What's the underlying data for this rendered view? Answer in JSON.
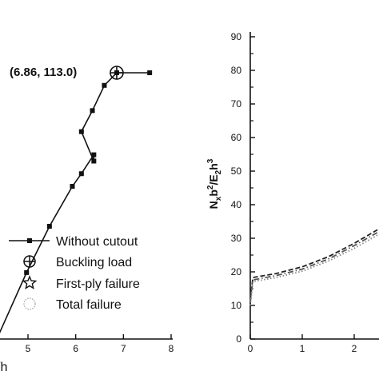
{
  "chart_data": [
    {
      "type": "line",
      "panel": "left",
      "xlabel": "/h",
      "x_ticks": [
        "5",
        "6",
        "7",
        "8"
      ],
      "series": [
        {
          "name": "Without cutout",
          "x": [
            4.2,
            4.97,
            5.45,
            5.93,
            6.12,
            6.38,
            6.38,
            6.12,
            6.35,
            6.6,
            6.86,
            7.55
          ],
          "y": [
            46,
            65.5,
            76.5,
            86,
            89,
            93.5,
            92,
            99,
            104,
            110,
            113.0,
            113.0
          ]
        }
      ],
      "annotation": {
        "label": "(6.86, 113.0)",
        "x": 6.86,
        "y": 113.0
      },
      "legend": {
        "placement": "bottom-right",
        "items": [
          {
            "label": "Without cutout",
            "marker": "line-square"
          },
          {
            "label": "Buckling load",
            "marker": "circle-cross"
          },
          {
            "label": "First-ply failure",
            "marker": "star"
          },
          {
            "label": "Total failure",
            "marker": "circle-dotted"
          }
        ]
      }
    },
    {
      "type": "line",
      "panel": "right",
      "ylabel": "N_x b^2/E_2 h^3",
      "ylim": [
        0,
        90
      ],
      "y_ticks": [
        "0",
        "10",
        "20",
        "30",
        "40",
        "50",
        "60",
        "70",
        "80",
        "90"
      ],
      "x_ticks": [
        "0",
        "1",
        "2"
      ],
      "series": [
        {
          "style": "dash",
          "x": [
            0,
            0.05,
            0.5,
            1.0,
            1.5,
            2.0,
            2.5,
            2.95
          ],
          "y": [
            12,
            18.3,
            19.5,
            21.5,
            24.5,
            28.5,
            33,
            37.5
          ]
        },
        {
          "style": "dash-dot",
          "x": [
            0,
            0.05,
            0.5,
            1.0,
            1.5,
            2.0,
            2.5,
            2.95
          ],
          "y": [
            11,
            17.6,
            18.9,
            20.8,
            23.8,
            27.8,
            32.2,
            36.6
          ]
        },
        {
          "style": "dot",
          "x": [
            0,
            0.05,
            0.5,
            1.0,
            1.5,
            2.0,
            2.5,
            2.95
          ],
          "y": [
            10,
            17.1,
            18.3,
            20.2,
            23.2,
            27.0,
            31.4,
            35.8
          ]
        }
      ]
    }
  ]
}
